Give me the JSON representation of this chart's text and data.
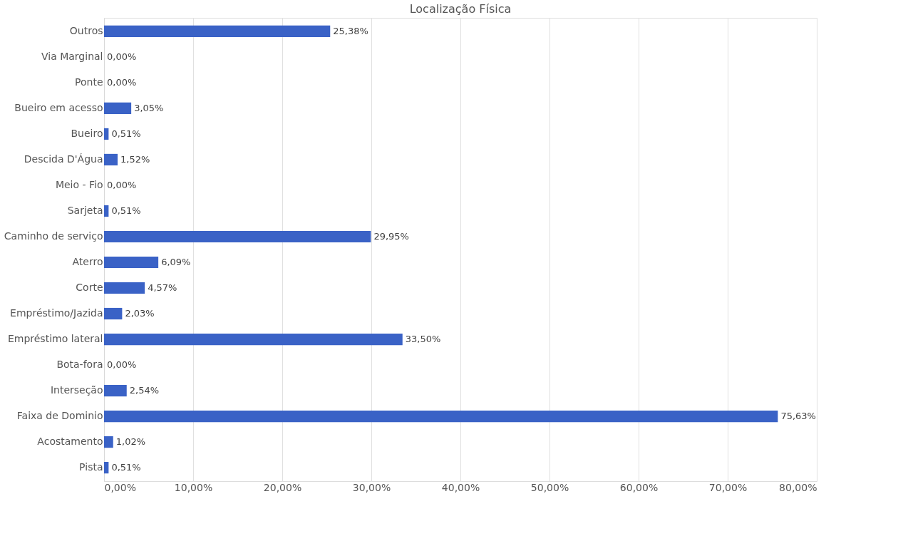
{
  "chart_data": {
    "type": "bar",
    "orientation": "horizontal",
    "title": "Localização Física",
    "categories": [
      "Outros",
      "Via Marginal",
      "Ponte",
      "Bueiro em acesso",
      "Bueiro",
      "Descida D'Água",
      "Meio - Fio",
      "Sarjeta",
      "Caminho de serviço",
      "Aterro",
      "Corte",
      "Empréstimo/Jazida",
      "Empréstimo lateral",
      "Bota-fora",
      "Interseção",
      "Faixa de Dominio",
      "Acostamento",
      "Pista"
    ],
    "values": [
      25.38,
      0,
      0,
      3.05,
      0.51,
      1.52,
      0,
      0.51,
      29.95,
      6.09,
      4.57,
      2.03,
      33.5,
      0,
      2.54,
      75.63,
      1.02,
      0.51
    ],
    "value_labels": [
      "25,38%",
      "0,00%",
      "0,00%",
      "3,05%",
      "0,51%",
      "1,52%",
      "0,00%",
      "0,51%",
      "29,95%",
      "6,09%",
      "4,57%",
      "2,03%",
      "33,50%",
      "0,00%",
      "2,54%",
      "75,63%",
      "1,02%",
      "0,51%"
    ],
    "color": "#3a62c6",
    "xlim": [
      0,
      80
    ],
    "xticks": [
      {
        "value": 0,
        "label": "0,00%"
      },
      {
        "value": 10,
        "label": "10,00%"
      },
      {
        "value": 20,
        "label": "20,00%"
      },
      {
        "value": 30,
        "label": "30,00%"
      },
      {
        "value": 40,
        "label": "40,00%"
      },
      {
        "value": 50,
        "label": "50,00%"
      },
      {
        "value": 60,
        "label": "60,00%"
      },
      {
        "value": 70,
        "label": "70,00%"
      },
      {
        "value": 80,
        "label": "80,00%"
      }
    ],
    "grid": "x"
  }
}
